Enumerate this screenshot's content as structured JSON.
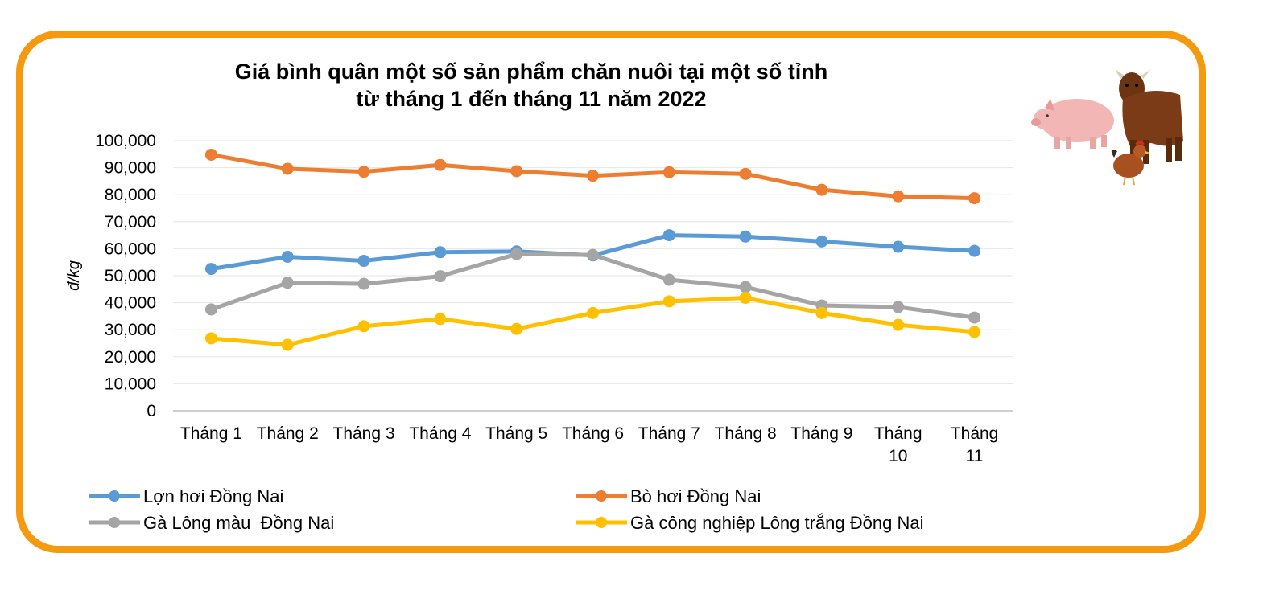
{
  "chart_data": {
    "type": "line",
    "title_line1": "Giá bình quân một số sản phẩm chăn nuôi tại một số tỉnh",
    "title_line2": "từ tháng 1 đến tháng 11 năm 2022",
    "ylabel": "đ/kg",
    "ylim": [
      0,
      100000
    ],
    "yticks": [
      "0",
      "10,000",
      "20,000",
      "30,000",
      "40,000",
      "50,000",
      "60,000",
      "70,000",
      "80,000",
      "90,000",
      "100,000"
    ],
    "categories": [
      [
        "Tháng 1"
      ],
      [
        "Tháng 2"
      ],
      [
        "Tháng 3"
      ],
      [
        "Tháng 4"
      ],
      [
        "Tháng 5"
      ],
      [
        "Tháng 6"
      ],
      [
        "Tháng 7"
      ],
      [
        "Tháng 8"
      ],
      [
        "Tháng 9"
      ],
      [
        "Tháng",
        "10"
      ],
      [
        "Tháng",
        "11"
      ]
    ],
    "grid": true,
    "legend_position": "bottom",
    "series": [
      {
        "name": "Lợn hơi Đồng Nai",
        "color": "#5b9bd5",
        "values": [
          52500,
          57000,
          55500,
          58700,
          59000,
          57500,
          65000,
          64500,
          62700,
          60700,
          59200
        ]
      },
      {
        "name": "Bò hơi Đồng Nai",
        "color": "#ed7d31",
        "values": [
          94800,
          89600,
          88500,
          91000,
          88700,
          87000,
          88300,
          87700,
          81800,
          79400,
          78700
        ]
      },
      {
        "name": "Gà Lông màu  Đồng Nai",
        "color": "#a5a5a5",
        "values": [
          37500,
          47400,
          47000,
          49800,
          58000,
          57700,
          48500,
          45800,
          39000,
          38400,
          34500
        ]
      },
      {
        "name": "Gà công nghiệp Lông trắng Đồng Nai",
        "color": "#ffc000",
        "values": [
          26800,
          24400,
          31300,
          34000,
          30300,
          36200,
          40500,
          41800,
          36200,
          31800,
          29200
        ]
      }
    ]
  },
  "decoration": {
    "icons": [
      "pig-icon",
      "cow-icon",
      "chicken-icon"
    ]
  }
}
